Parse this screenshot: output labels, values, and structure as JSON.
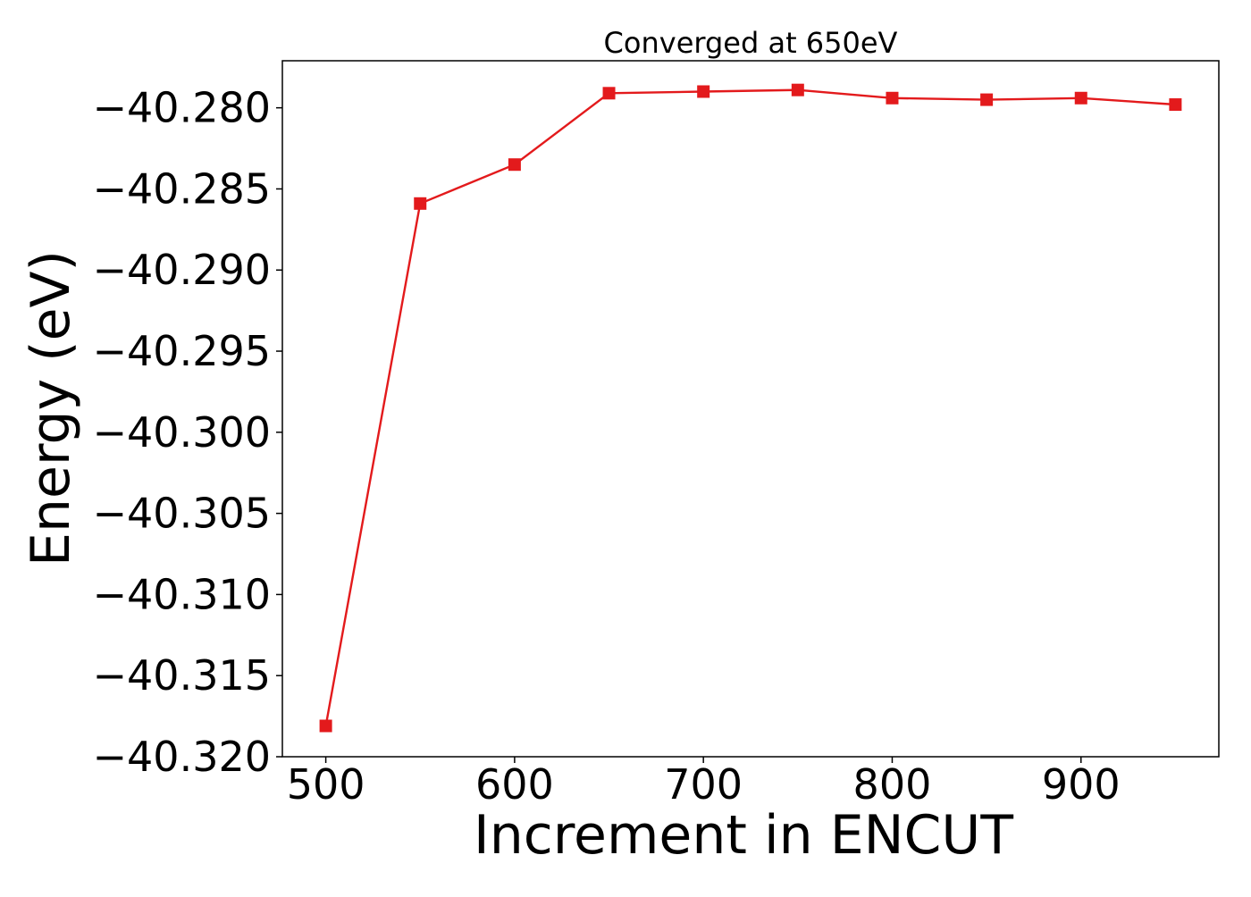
{
  "chart_data": {
    "type": "line",
    "title": "Converged at 650eV",
    "xlabel": "Increment in ENCUT",
    "ylabel": "Energy (eV)",
    "x": [
      500,
      550,
      600,
      650,
      700,
      750,
      800,
      850,
      900,
      950
    ],
    "series": [
      {
        "values": [
          -40.3181,
          -40.2859,
          -40.2835,
          -40.2791,
          -40.279,
          -40.2789,
          -40.2794,
          -40.2795,
          -40.2794,
          -40.2798
        ],
        "color": "#e31a1c",
        "marker": "square"
      }
    ],
    "xlim": [
      477,
      973
    ],
    "ylim": [
      -40.32,
      -40.2771
    ],
    "xticks": [
      500,
      600,
      700,
      800,
      900
    ],
    "xtick_labels": [
      "500",
      "600",
      "700",
      "800",
      "900"
    ],
    "yticks": [
      -40.28,
      -40.285,
      -40.29,
      -40.295,
      -40.3,
      -40.305,
      -40.31,
      -40.315,
      -40.32
    ],
    "ytick_labels": [
      "−40.280",
      "−40.285",
      "−40.290",
      "−40.295",
      "−40.300",
      "−40.305",
      "−40.310",
      "−40.315",
      "−40.320"
    ],
    "grid": false,
    "legend": "none"
  }
}
